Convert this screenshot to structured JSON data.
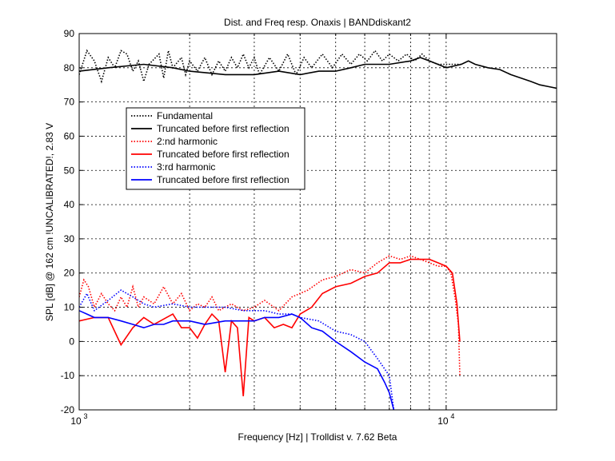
{
  "chart_data": {
    "type": "line",
    "title": "Dist. and Freq resp. Onaxis | BANDdiskant2",
    "xlabel": "Frequency [Hz] | Trolldist v. 7.62 Beta",
    "ylabel": "SPL [dB] @ 162 cm !UNCALIBRATED!, 2.83 V",
    "xscale": "log",
    "xlim": [
      1000,
      20000
    ],
    "ylim": [
      -20,
      90
    ],
    "y_ticks": [
      -20,
      -10,
      0,
      10,
      20,
      30,
      40,
      50,
      60,
      70,
      80,
      90
    ],
    "x_tick_labels": [
      {
        "value": 1000,
        "base": "10",
        "exp": "3"
      },
      {
        "value": 10000,
        "base": "10",
        "exp": "4"
      }
    ],
    "grid": true,
    "legend_position": "upper-left",
    "series": [
      {
        "name": "Fundamental",
        "color": "#000000",
        "dash": "dotted",
        "points": [
          [
            1000,
            78
          ],
          [
            1050,
            85
          ],
          [
            1100,
            82
          ],
          [
            1150,
            76
          ],
          [
            1200,
            83
          ],
          [
            1250,
            80
          ],
          [
            1300,
            85
          ],
          [
            1350,
            84
          ],
          [
            1400,
            79
          ],
          [
            1450,
            82
          ],
          [
            1500,
            76
          ],
          [
            1550,
            81
          ],
          [
            1650,
            84
          ],
          [
            1700,
            77
          ],
          [
            1750,
            85
          ],
          [
            1800,
            80
          ],
          [
            1900,
            83
          ],
          [
            1950,
            78
          ],
          [
            2000,
            82
          ],
          [
            2100,
            79
          ],
          [
            2200,
            83
          ],
          [
            2300,
            78
          ],
          [
            2400,
            82
          ],
          [
            2500,
            79
          ],
          [
            2600,
            83
          ],
          [
            2700,
            80
          ],
          [
            2800,
            84
          ],
          [
            2900,
            80
          ],
          [
            3000,
            83
          ],
          [
            3100,
            78
          ],
          [
            3300,
            83
          ],
          [
            3500,
            79
          ],
          [
            3700,
            84
          ],
          [
            3900,
            78
          ],
          [
            4100,
            83
          ],
          [
            4300,
            80
          ],
          [
            4600,
            84
          ],
          [
            4900,
            80
          ],
          [
            5200,
            84
          ],
          [
            5500,
            81
          ],
          [
            5800,
            84
          ],
          [
            6100,
            82
          ],
          [
            6400,
            85
          ],
          [
            6700,
            82
          ],
          [
            7000,
            84
          ],
          [
            7400,
            82
          ],
          [
            7800,
            84
          ],
          [
            8200,
            82
          ],
          [
            8600,
            84
          ],
          [
            9000,
            82
          ],
          [
            9500,
            81
          ],
          [
            10000,
            81
          ],
          [
            11000,
            81
          ]
        ]
      },
      {
        "name": "Truncated before first reflection",
        "color": "#000000",
        "dash": "solid",
        "points": [
          [
            1000,
            79
          ],
          [
            1200,
            80
          ],
          [
            1500,
            81
          ],
          [
            1800,
            80
          ],
          [
            2000,
            79
          ],
          [
            2500,
            78
          ],
          [
            3000,
            78
          ],
          [
            3500,
            79
          ],
          [
            4000,
            78
          ],
          [
            4500,
            79
          ],
          [
            5000,
            79
          ],
          [
            5500,
            80
          ],
          [
            6000,
            81
          ],
          [
            7000,
            81
          ],
          [
            8000,
            82
          ],
          [
            8500,
            83
          ],
          [
            9000,
            82
          ],
          [
            9500,
            81
          ],
          [
            10000,
            80
          ],
          [
            11000,
            81
          ],
          [
            11500,
            82
          ],
          [
            12000,
            81
          ],
          [
            13000,
            80
          ],
          [
            14000,
            79.5
          ],
          [
            15000,
            78
          ],
          [
            16000,
            77
          ],
          [
            17000,
            76
          ],
          [
            18000,
            75
          ],
          [
            19000,
            74.5
          ],
          [
            20000,
            74
          ]
        ]
      },
      {
        "name": "2:nd harmonic",
        "color": "#ff0000",
        "dash": "dotted",
        "points": [
          [
            1000,
            13
          ],
          [
            1030,
            18
          ],
          [
            1060,
            16
          ],
          [
            1100,
            10
          ],
          [
            1150,
            14
          ],
          [
            1200,
            11
          ],
          [
            1250,
            9
          ],
          [
            1300,
            13
          ],
          [
            1350,
            10
          ],
          [
            1400,
            16
          ],
          [
            1450,
            10
          ],
          [
            1500,
            13
          ],
          [
            1600,
            11
          ],
          [
            1700,
            16
          ],
          [
            1800,
            11
          ],
          [
            1900,
            14
          ],
          [
            2000,
            9
          ],
          [
            2100,
            11
          ],
          [
            2200,
            10
          ],
          [
            2300,
            13
          ],
          [
            2400,
            9
          ],
          [
            2600,
            11
          ],
          [
            2800,
            9
          ],
          [
            3000,
            10
          ],
          [
            3200,
            12
          ],
          [
            3500,
            9
          ],
          [
            3800,
            13
          ],
          [
            4200,
            15
          ],
          [
            4600,
            18
          ],
          [
            5000,
            19
          ],
          [
            5500,
            21
          ],
          [
            6000,
            20
          ],
          [
            6500,
            23
          ],
          [
            7000,
            25
          ],
          [
            7500,
            24
          ],
          [
            8000,
            25
          ],
          [
            8500,
            24
          ],
          [
            9000,
            23
          ],
          [
            9500,
            22
          ],
          [
            10000,
            22
          ],
          [
            10300,
            20
          ],
          [
            10600,
            12
          ],
          [
            10800,
            5
          ],
          [
            10900,
            -10
          ]
        ]
      },
      {
        "name": "Truncated before first reflection",
        "color": "#ff0000",
        "dash": "solid",
        "points": [
          [
            1000,
            6
          ],
          [
            1100,
            7
          ],
          [
            1200,
            7
          ],
          [
            1300,
            -1
          ],
          [
            1400,
            4
          ],
          [
            1500,
            7
          ],
          [
            1600,
            5
          ],
          [
            1800,
            8
          ],
          [
            1900,
            4
          ],
          [
            2000,
            4
          ],
          [
            2100,
            1
          ],
          [
            2200,
            5
          ],
          [
            2300,
            8
          ],
          [
            2400,
            6
          ],
          [
            2500,
            -9
          ],
          [
            2600,
            6
          ],
          [
            2700,
            4
          ],
          [
            2800,
            -16
          ],
          [
            2900,
            7
          ],
          [
            3000,
            6
          ],
          [
            3200,
            7
          ],
          [
            3400,
            4
          ],
          [
            3600,
            5
          ],
          [
            3800,
            4
          ],
          [
            4000,
            8
          ],
          [
            4300,
            10
          ],
          [
            4600,
            14
          ],
          [
            5000,
            16
          ],
          [
            5500,
            17
          ],
          [
            6000,
            19
          ],
          [
            6500,
            20
          ],
          [
            7000,
            23
          ],
          [
            7500,
            23
          ],
          [
            8000,
            24
          ],
          [
            8500,
            24
          ],
          [
            9000,
            24
          ],
          [
            9500,
            23
          ],
          [
            10000,
            22
          ],
          [
            10400,
            20
          ],
          [
            10700,
            11
          ],
          [
            10900,
            0
          ]
        ]
      },
      {
        "name": "3:rd harmonic",
        "color": "#0000ff",
        "dash": "dotted",
        "points": [
          [
            1000,
            10
          ],
          [
            1050,
            14
          ],
          [
            1100,
            9
          ],
          [
            1200,
            12
          ],
          [
            1300,
            15
          ],
          [
            1400,
            13
          ],
          [
            1500,
            11
          ],
          [
            1600,
            10
          ],
          [
            1800,
            11
          ],
          [
            2000,
            10
          ],
          [
            2200,
            10
          ],
          [
            2500,
            10
          ],
          [
            2800,
            9
          ],
          [
            3000,
            9
          ],
          [
            3200,
            9
          ],
          [
            3500,
            8
          ],
          [
            3800,
            8
          ],
          [
            4000,
            7
          ],
          [
            4500,
            6
          ],
          [
            5000,
            3
          ],
          [
            5500,
            2
          ],
          [
            6000,
            0
          ],
          [
            6500,
            -5
          ],
          [
            7000,
            -10
          ],
          [
            7200,
            -20
          ]
        ]
      },
      {
        "name": "Truncated before first reflection",
        "color": "#0000ff",
        "dash": "solid",
        "points": [
          [
            1000,
            9
          ],
          [
            1050,
            8
          ],
          [
            1100,
            7
          ],
          [
            1200,
            7
          ],
          [
            1300,
            6
          ],
          [
            1400,
            5
          ],
          [
            1500,
            4
          ],
          [
            1600,
            5
          ],
          [
            1700,
            5
          ],
          [
            1800,
            6
          ],
          [
            2000,
            6
          ],
          [
            2200,
            5
          ],
          [
            2500,
            6
          ],
          [
            2800,
            6
          ],
          [
            3000,
            6
          ],
          [
            3200,
            7
          ],
          [
            3500,
            7
          ],
          [
            3800,
            8
          ],
          [
            4000,
            7
          ],
          [
            4300,
            4
          ],
          [
            4600,
            3
          ],
          [
            5000,
            0
          ],
          [
            5500,
            -3
          ],
          [
            6000,
            -6
          ],
          [
            6500,
            -8
          ],
          [
            6800,
            -12
          ],
          [
            7000,
            -15
          ],
          [
            7200,
            -20
          ]
        ]
      }
    ]
  }
}
